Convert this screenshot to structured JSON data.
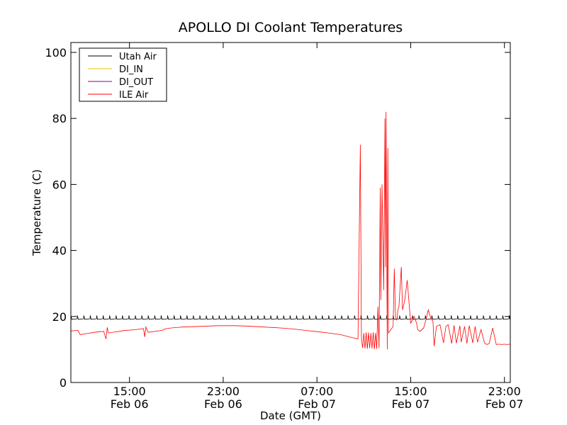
{
  "chart_data": {
    "type": "line",
    "title": "APOLLO DI Coolant Temperatures",
    "xlabel": "Date (GMT)",
    "ylabel": "Temperature (C)",
    "xlim_hours": [
      10.0,
      47.5
    ],
    "ylim": [
      0,
      103
    ],
    "yticks": [
      0,
      20,
      40,
      60,
      80,
      100
    ],
    "ytick_labels": [
      "0",
      "20",
      "40",
      "60",
      "80",
      "100"
    ],
    "xticks": [
      {
        "hour": 15,
        "time": "15:00",
        "date": "Feb 06"
      },
      {
        "hour": 23,
        "time": "23:00",
        "date": "Feb 06"
      },
      {
        "hour": 31,
        "time": "07:00",
        "date": "Feb 07"
      },
      {
        "hour": 39,
        "time": "15:00",
        "date": "Feb 07"
      },
      {
        "hour": 47,
        "time": "23:00",
        "date": "Feb 07"
      }
    ],
    "legend_position": "top-left",
    "series": [
      {
        "name": "Utah Air",
        "color": "#000000",
        "pattern": "sawtooth",
        "base": 19.4,
        "amplitude": 0.9,
        "period_hours": 0.55,
        "x_hours": [
          10.0,
          47.5
        ]
      },
      {
        "name": "DI_IN",
        "color": "#e8c000",
        "x_hours": [],
        "y": []
      },
      {
        "name": "DI_OUT",
        "color": "#800080",
        "x_hours": [],
        "y": []
      },
      {
        "name": "ILE Air",
        "color": "#ff0000",
        "x_hours": [
          10.0,
          10.6,
          10.8,
          12.0,
          12.5,
          12.8,
          13.0,
          13.1,
          13.2,
          14.5,
          15.5,
          16.2,
          16.3,
          16.4,
          16.6,
          17.8,
          18.0,
          18.3,
          18.5,
          19.5,
          21.0,
          22.5,
          24.0,
          25.0,
          26.5,
          28.0,
          29.0,
          30.0,
          31.0,
          32.0,
          33.0,
          34.0,
          34.5,
          34.7,
          34.8,
          34.9,
          35.0,
          35.1,
          35.2,
          35.3,
          35.4,
          35.5,
          35.6,
          35.7,
          35.8,
          35.9,
          36.0,
          36.1,
          36.2,
          36.3,
          36.4,
          36.45,
          36.55,
          36.7,
          36.8,
          36.85,
          36.9,
          37.0,
          37.05,
          37.1,
          37.2,
          37.3,
          37.5,
          37.6,
          37.7,
          37.8,
          37.85,
          37.9,
          38.0,
          38.2,
          38.3,
          38.5,
          38.7,
          39.0,
          39.3,
          39.5,
          39.6,
          39.8,
          40.1,
          40.3,
          40.5,
          40.7,
          40.9,
          41.0,
          41.2,
          41.5,
          41.8,
          42.0,
          42.2,
          42.5,
          42.7,
          42.9,
          43.2,
          43.3,
          43.6,
          43.8,
          44.0,
          44.3,
          44.5,
          44.7,
          45.0,
          45.3,
          45.5,
          45.7,
          46.0,
          46.3,
          46.5,
          46.8,
          47.0,
          47.2,
          47.5
        ],
        "y": [
          15.6,
          15.8,
          14.5,
          15.2,
          15.4,
          15.5,
          13.2,
          16.7,
          15.0,
          15.7,
          16.0,
          16.3,
          13.8,
          16.8,
          15.2,
          15.8,
          16.2,
          16.4,
          16.5,
          16.8,
          17.0,
          17.2,
          17.2,
          17.1,
          16.8,
          16.5,
          16.2,
          15.8,
          15.4,
          15.0,
          14.5,
          13.6,
          13.2,
          72.0,
          13.0,
          10.5,
          15.0,
          10.3,
          15.2,
          10.2,
          15.1,
          10.4,
          15.0,
          10.3,
          15.2,
          10.1,
          15.0,
          10.2,
          23.0,
          10.4,
          59.0,
          25.0,
          60.0,
          28.0,
          80.0,
          35.0,
          82.0,
          10.0,
          71.0,
          15.0,
          15.5,
          16.0,
          17.0,
          34.5,
          20.0,
          19.0,
          19.5,
          22.0,
          23.0,
          35.0,
          22.0,
          25.0,
          31.0,
          18.0,
          20.0,
          18.0,
          16.0,
          15.5,
          16.5,
          19.0,
          22.0,
          19.5,
          18.5,
          11.0,
          17.0,
          17.5,
          12.0,
          17.0,
          17.5,
          11.8,
          17.3,
          11.9,
          17.2,
          12.2,
          17.0,
          11.8,
          17.2,
          12.0,
          17.0,
          12.2,
          16.0,
          12.0,
          11.5,
          11.8,
          16.5,
          11.5,
          11.6,
          11.5,
          11.6,
          11.5,
          11.6
        ]
      }
    ]
  }
}
